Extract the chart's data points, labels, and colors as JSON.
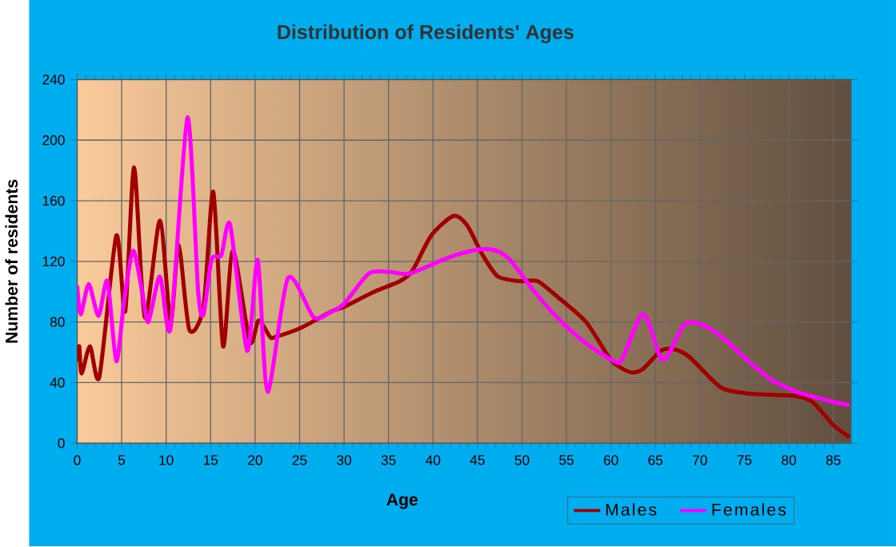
{
  "chart_data": {
    "type": "line",
    "title": "Distribution of Residents' Ages",
    "xlabel": "Age",
    "ylabel": "Number of residents",
    "xlim": [
      0,
      87
    ],
    "ylim": [
      0,
      240
    ],
    "xticks": [
      0,
      5,
      10,
      15,
      20,
      25,
      30,
      35,
      40,
      45,
      50,
      55,
      60,
      65,
      70,
      75,
      80,
      85
    ],
    "yticks": [
      0,
      40,
      80,
      120,
      160,
      200,
      240
    ],
    "grid": true,
    "legend": "bottom",
    "marker": "none",
    "line_style": "solid",
    "series": [
      {
        "name": "Males",
        "color": "#a00000",
        "x": [
          0,
          0.23,
          0.5,
          1.44,
          2.5,
          4.4,
          5.4,
          6.4,
          7.6,
          9.3,
          10.5,
          11.4,
          12.6,
          14.2,
          15.3,
          16.4,
          17.5,
          19.4,
          20.4,
          21.7,
          22.2,
          25.1,
          28.6,
          30,
          33.4,
          36.3,
          37.7,
          39.8,
          42.3,
          43.8,
          45.6,
          47.3,
          49.7,
          51.7,
          53.7,
          57.2,
          60,
          62.1,
          63.6,
          65.6,
          67.1,
          68.8,
          72.3,
          75.1,
          78,
          80.9,
          82.7,
          85,
          86.8
        ],
        "values": [
          54,
          64,
          46,
          64,
          44,
          137,
          87,
          182,
          83,
          147,
          80,
          131,
          75,
          90,
          166,
          64,
          127,
          67,
          81,
          70,
          70,
          76,
          87,
          90,
          100,
          107,
          114,
          137,
          150,
          144,
          124,
          110,
          107,
          107,
          98,
          80,
          55,
          47,
          49,
          61,
          62,
          57,
          37,
          33,
          32,
          31,
          27,
          12,
          4
        ]
      },
      {
        "name": "Females",
        "color": "#ff00ff",
        "x": [
          0,
          0.4,
          1.3,
          2.4,
          3.4,
          4.4,
          5.3,
          6.3,
          7.3,
          8,
          9.3,
          10.5,
          12.4,
          13.6,
          14.2,
          15.1,
          16.2,
          17.2,
          19.1,
          20.3,
          21.4,
          23.7,
          26.6,
          28.6,
          30,
          32.8,
          35.1,
          37.4,
          41.5,
          44.4,
          46.5,
          48.5,
          51.4,
          54.3,
          57.2,
          60.4,
          61.3,
          63.3,
          64.2,
          65.6,
          66.5,
          68.2,
          69.9,
          72.3,
          75.1,
          78,
          80.9,
          83.8,
          86.8
        ],
        "values": [
          104,
          85,
          105,
          84,
          107,
          54,
          95,
          127,
          100,
          80,
          110,
          76,
          215,
          100,
          85,
          121,
          124,
          144,
          61,
          121,
          34,
          109,
          83,
          87,
          92,
          112,
          113,
          112,
          122,
          127,
          128,
          122,
          100,
          81,
          66,
          54,
          56,
          84,
          80,
          56,
          59,
          78,
          79,
          71,
          56,
          42,
          34,
          29,
          25
        ]
      }
    ]
  }
}
